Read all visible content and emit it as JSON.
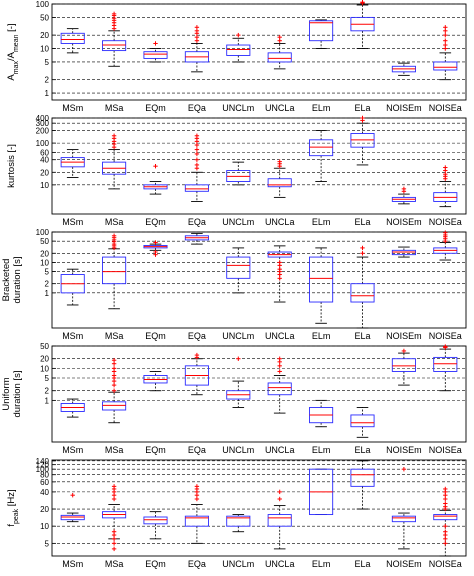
{
  "chart_data": [
    {
      "type": "box",
      "ylabel_lines": [
        "A",
        "max",
        "/A",
        "mean",
        " [-]"
      ],
      "yscale": "log",
      "ylim": [
        0.7,
        100
      ],
      "ticks": [
        1,
        2,
        5,
        10,
        20,
        50,
        100
      ],
      "categories": [
        "MSm",
        "MSa",
        "EQm",
        "EQa",
        "UNCLm",
        "UNCLa",
        "ELm",
        "ELa",
        "NOISEm",
        "NOISEa"
      ],
      "boxes": [
        {
          "wl": 8,
          "q1": 13,
          "med": 16,
          "q3": 22,
          "wh": 28,
          "outliers": []
        },
        {
          "wl": 4,
          "q1": 9,
          "med": 12,
          "q3": 15,
          "wh": 25,
          "outliers": [
            28,
            33,
            38,
            43,
            48,
            55,
            60
          ]
        },
        {
          "wl": 5,
          "q1": 6,
          "med": 7.5,
          "q3": 8.5,
          "wh": 10,
          "outliers": [
            13
          ]
        },
        {
          "wl": 3,
          "q1": 5,
          "med": 6.5,
          "q3": 8.5,
          "wh": 13,
          "outliers": [
            15,
            18,
            22,
            25,
            30
          ]
        },
        {
          "wl": 5,
          "q1": 7,
          "med": 9.5,
          "q3": 12,
          "wh": 17,
          "outliers": [
            20
          ]
        },
        {
          "wl": 3.5,
          "q1": 5,
          "med": 6,
          "q3": 8,
          "wh": 13,
          "outliers": [
            15,
            18
          ]
        },
        {
          "wl": 10,
          "q1": 15,
          "med": 38,
          "q3": 42,
          "wh": 44,
          "outliers": []
        },
        {
          "wl": 10,
          "q1": 25,
          "med": 35,
          "q3": 50,
          "wh": 95,
          "outliers": [
            105,
            110
          ]
        },
        {
          "wl": 2.5,
          "q1": 3,
          "med": 3.5,
          "q3": 4,
          "wh": 4.7,
          "outliers": []
        },
        {
          "wl": 2,
          "q1": 3.3,
          "med": 3.8,
          "q3": 5,
          "wh": 8,
          "outliers": [
            10,
            12,
            15,
            20,
            25,
            30
          ]
        }
      ]
    },
    {
      "type": "box",
      "ylabel_lines": [
        "kurtosis [-]"
      ],
      "yscale": "log",
      "ylim": [
        2,
        400
      ],
      "ticks": [
        10,
        20,
        40,
        60,
        100,
        200,
        300,
        400
      ],
      "categories": [
        "MSm",
        "MSa",
        "EQm",
        "EQa",
        "UNCLm",
        "UNCLa",
        "ELm",
        "ELa",
        "NOISEm",
        "NOISEa"
      ],
      "boxes": [
        {
          "wl": 15,
          "q1": 27,
          "med": 35,
          "q3": 45,
          "wh": 70,
          "outliers": []
        },
        {
          "wl": 8,
          "q1": 18,
          "med": 25,
          "q3": 35,
          "wh": 70,
          "outliers": [
            80,
            95,
            110,
            130,
            150
          ]
        },
        {
          "wl": 6,
          "q1": 8,
          "med": 9,
          "q3": 10,
          "wh": 12,
          "outliers": [
            28
          ]
        },
        {
          "wl": 4,
          "q1": 7,
          "med": 8,
          "q3": 10,
          "wh": 20,
          "outliers": [
            25,
            30,
            40,
            55,
            70,
            90,
            110,
            130,
            150
          ]
        },
        {
          "wl": 10,
          "q1": 12,
          "med": 16,
          "q3": 22,
          "wh": 35,
          "outliers": []
        },
        {
          "wl": 5,
          "q1": 9,
          "med": 10,
          "q3": 14,
          "wh": 25,
          "outliers": [
            28,
            32,
            36
          ]
        },
        {
          "wl": 12,
          "q1": 50,
          "med": 80,
          "q3": 120,
          "wh": 200,
          "outliers": []
        },
        {
          "wl": 30,
          "q1": 80,
          "med": 120,
          "q3": 170,
          "wh": 300,
          "outliers": [
            350,
            400
          ]
        },
        {
          "wl": 3.5,
          "q1": 4,
          "med": 4.5,
          "q3": 5,
          "wh": 6,
          "outliers": [
            7,
            8
          ]
        },
        {
          "wl": 3,
          "q1": 4,
          "med": 5,
          "q3": 6.5,
          "wh": 12,
          "outliers": [
            14,
            16,
            18,
            22,
            26
          ]
        }
      ]
    },
    {
      "type": "box",
      "ylabel_lines": [
        "Bracketed",
        "duration [s]"
      ],
      "yscale": "log",
      "ylim": [
        0.07,
        100
      ],
      "ticks": [
        1,
        2,
        5,
        10,
        20,
        50,
        100
      ],
      "categories": [
        "MSm",
        "MSa",
        "EQm",
        "EQa",
        "UNCLm",
        "UNCLa",
        "ELm",
        "ELa",
        "NOISEm",
        "NOISEa"
      ],
      "boxes": [
        {
          "wl": 0.4,
          "q1": 1,
          "med": 2,
          "q3": 4,
          "wh": 6,
          "outliers": []
        },
        {
          "wl": 0.3,
          "q1": 2,
          "med": 5,
          "q3": 15,
          "wh": 28,
          "outliers": [
            30,
            35,
            40,
            48,
            55,
            65,
            75
          ]
        },
        {
          "wl": 25,
          "q1": 30,
          "med": 33,
          "q3": 36,
          "wh": 40,
          "outliers": [
            18,
            22,
            45
          ]
        },
        {
          "wl": 40,
          "q1": 55,
          "med": 65,
          "q3": 75,
          "wh": 90,
          "outliers": []
        },
        {
          "wl": 1,
          "q1": 3,
          "med": 8,
          "q3": 15,
          "wh": 30,
          "outliers": []
        },
        {
          "wl": 0.5,
          "q1": 15,
          "med": 18,
          "q3": 22,
          "wh": 35,
          "outliers": [
            3,
            4,
            5,
            6,
            8,
            10
          ]
        },
        {
          "wl": 0.1,
          "q1": 0.5,
          "med": 3,
          "q3": 15,
          "wh": 30,
          "outliers": []
        },
        {
          "wl": 0.07,
          "q1": 0.5,
          "med": 0.8,
          "q3": 2,
          "wh": 15,
          "outliers": [
            20,
            30
          ]
        },
        {
          "wl": 15,
          "q1": 18,
          "med": 22,
          "q3": 25,
          "wh": 32,
          "outliers": []
        },
        {
          "wl": 12,
          "q1": 20,
          "med": 25,
          "q3": 30,
          "wh": 45,
          "outliers": [
            50,
            60,
            70,
            80,
            95
          ]
        }
      ]
    },
    {
      "type": "box",
      "ylabel_lines": [
        "Uniform",
        "duration [s]"
      ],
      "yscale": "log",
      "ylim": [
        0.05,
        50
      ],
      "ticks": [
        1,
        2,
        5,
        10,
        20,
        50
      ],
      "categories": [
        "MSm",
        "MSa",
        "EQm",
        "EQa",
        "UNCLm",
        "UNCLa",
        "ELm",
        "ELa",
        "NOISEm",
        "NOISEa"
      ],
      "boxes": [
        {
          "wl": 0.3,
          "q1": 0.45,
          "med": 0.6,
          "q3": 0.8,
          "wh": 1.1,
          "outliers": []
        },
        {
          "wl": 0.2,
          "q1": 0.5,
          "med": 0.7,
          "q3": 0.9,
          "wh": 1.8,
          "outliers": [
            2,
            3,
            4,
            5,
            6,
            8,
            10,
            14,
            18
          ]
        },
        {
          "wl": 2,
          "q1": 3.5,
          "med": 4.5,
          "q3": 6,
          "wh": 8,
          "outliers": []
        },
        {
          "wl": 1.5,
          "q1": 3,
          "med": 6,
          "q3": 12,
          "wh": 20,
          "outliers": [
            22,
            26
          ]
        },
        {
          "wl": 0.6,
          "q1": 1.1,
          "med": 1.5,
          "q3": 2,
          "wh": 4,
          "outliers": [
            20
          ]
        },
        {
          "wl": 0.4,
          "q1": 1.5,
          "med": 2.5,
          "q3": 3.5,
          "wh": 6,
          "outliers": [
            8,
            12,
            16,
            20
          ]
        },
        {
          "wl": 0.15,
          "q1": 0.2,
          "med": 0.35,
          "q3": 0.6,
          "wh": 1.0,
          "outliers": []
        },
        {
          "wl": 0.07,
          "q1": 0.15,
          "med": 0.2,
          "q3": 0.35,
          "wh": 0.6,
          "outliers": []
        },
        {
          "wl": 3,
          "q1": 8,
          "med": 12,
          "q3": 20,
          "wh": 30,
          "outliers": [
            35
          ]
        },
        {
          "wl": 2,
          "q1": 8,
          "med": 14,
          "q3": 22,
          "wh": 40,
          "outliers": [
            45,
            48
          ]
        }
      ]
    },
    {
      "type": "box",
      "ylabel_lines": [
        "f",
        "peak",
        " [Hz]"
      ],
      "yscale": "log",
      "ylim": [
        3,
        145
      ],
      "ticks": [
        5,
        10,
        20,
        40,
        60,
        80,
        100,
        120,
        140
      ],
      "categories": [
        "MSm",
        "MSa",
        "EQm",
        "EQa",
        "UNCLm",
        "UNCLa",
        "ELm",
        "ELa",
        "NOISEm",
        "NOISEa"
      ],
      "boxes": [
        {
          "wl": 12,
          "q1": 13,
          "med": 14.5,
          "q3": 15.5,
          "wh": 17,
          "outliers": [
            35
          ]
        },
        {
          "wl": 6,
          "q1": 14,
          "med": 16,
          "q3": 18,
          "wh": 24,
          "outliers": [
            30,
            35,
            40,
            45,
            50,
            8,
            7,
            6,
            5,
            4
          ]
        },
        {
          "wl": 6,
          "q1": 11,
          "med": 13,
          "q3": 14.5,
          "wh": 18,
          "outliers": []
        },
        {
          "wl": 5,
          "q1": 10,
          "med": 14,
          "q3": 15,
          "wh": 24,
          "outliers": [
            30,
            35,
            40,
            45,
            50
          ]
        },
        {
          "wl": 8,
          "q1": 10,
          "med": 14,
          "q3": 15,
          "wh": 16,
          "outliers": []
        },
        {
          "wl": 4,
          "q1": 10,
          "med": 14,
          "q3": 16,
          "wh": 23,
          "outliers": [
            30,
            40
          ]
        },
        {
          "wl": 16,
          "q1": 16,
          "med": 40,
          "q3": 100,
          "wh": 100,
          "outliers": []
        },
        {
          "wl": 20,
          "q1": 50,
          "med": 80,
          "q3": 100,
          "wh": 140,
          "outliers": []
        },
        {
          "wl": 4,
          "q1": 12,
          "med": 14,
          "q3": 15,
          "wh": 17,
          "outliers": [
            100
          ]
        },
        {
          "wl": 3,
          "q1": 13,
          "med": 15,
          "q3": 16,
          "wh": 19,
          "outliers": [
            20,
            22,
            25,
            30,
            35,
            40,
            45,
            5,
            6,
            7,
            8,
            10
          ]
        }
      ]
    }
  ]
}
